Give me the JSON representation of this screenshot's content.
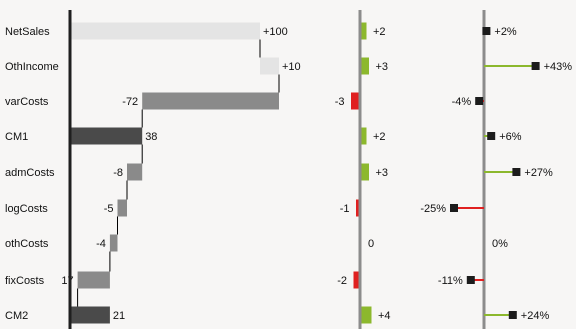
{
  "chart_data": [
    {
      "type": "bar",
      "subtype": "waterfall",
      "categories": [
        "NetSales",
        "OthIncome",
        "varCosts",
        "CM1",
        "admCosts",
        "logCosts",
        "othCosts",
        "fixCosts",
        "CM2"
      ],
      "values": [
        100,
        10,
        -72,
        38,
        -8,
        -5,
        -4,
        17,
        21
      ],
      "value_labels": [
        "+100",
        "+10",
        "-72",
        "38",
        "-8",
        "-5",
        "-4",
        "17",
        "21"
      ],
      "kinds": [
        "increase",
        "increase",
        "decrease",
        "total",
        "decrease",
        "decrease",
        "decrease",
        "decrease",
        "total"
      ],
      "colors": {
        "increase": "#e4e4e4",
        "decrease": "#8a8a8a",
        "total": "#4a4a4a",
        "axis": "#1f1f1f"
      }
    },
    {
      "type": "bar",
      "subtype": "absolute-variance",
      "categories": [
        "NetSales",
        "OthIncome",
        "varCosts",
        "CM1",
        "admCosts",
        "logCosts",
        "othCosts",
        "fixCosts",
        "CM2"
      ],
      "values": [
        2,
        3,
        -3,
        2,
        3,
        -1,
        0,
        -2,
        4
      ],
      "value_labels": [
        "+2",
        "+3",
        "-3",
        "+2",
        "+3",
        "-1",
        "0",
        "-2",
        "+4"
      ],
      "colors": {
        "positive": "#8cb82d",
        "negative": "#e02020",
        "axis": "#8c8c8c"
      }
    },
    {
      "type": "scatter",
      "subtype": "relative-variance-pins",
      "categories": [
        "NetSales",
        "OthIncome",
        "varCosts",
        "CM1",
        "admCosts",
        "logCosts",
        "othCosts",
        "fixCosts",
        "CM2"
      ],
      "values": [
        2,
        43,
        -4,
        6,
        27,
        -25,
        0,
        -11,
        24
      ],
      "value_labels": [
        "+2%",
        "+43%",
        "-4%",
        "+6%",
        "+27%",
        "-25%",
        "0%",
        "-11%",
        "+24%"
      ],
      "colors": {
        "positive": "#8cb82d",
        "negative": "#e02020",
        "marker": "#1c1c1c",
        "axis": "#8c8c8c"
      }
    }
  ]
}
